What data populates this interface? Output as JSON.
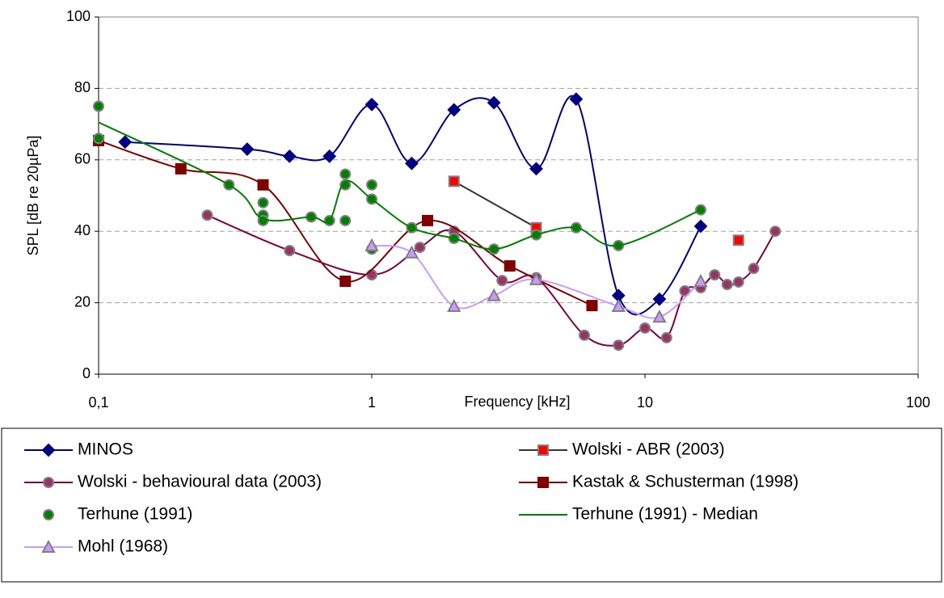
{
  "chart_data": {
    "type": "line",
    "xlabel": "Frequency [kHz]",
    "ylabel": "SPL [dB re 20µPa]",
    "xscale": "log",
    "xlim": [
      0.1,
      100
    ],
    "xticks": [
      {
        "value": 0.1,
        "label": "0,1"
      },
      1,
      10,
      100
    ],
    "ylim": [
      0,
      100
    ],
    "yticks": [
      0,
      20,
      40,
      60,
      80,
      100
    ],
    "grid": true,
    "legend": "bottom",
    "series": [
      {
        "name": "MINOS",
        "color": "#000080",
        "marker": "diamond",
        "marker_color": "#000080",
        "line": true,
        "smooth": true,
        "x": [
          0.125,
          0.35,
          0.5,
          0.7,
          1,
          1.4,
          2,
          2.8,
          4,
          5.6,
          8,
          11.3,
          16
        ],
        "values": [
          65,
          63,
          61,
          61,
          75.5,
          59,
          74,
          76,
          57.5,
          77,
          22,
          21,
          41.4
        ]
      },
      {
        "name": "Wolski - ABR (2003)",
        "color": "#333333",
        "marker": "square",
        "marker_color": "#ff0000",
        "line": true,
        "smooth": false,
        "x": [
          2,
          4,
          null,
          22
        ],
        "values": [
          54,
          41,
          null,
          37.5
        ]
      },
      {
        "name": "Wolski - behavioural data (2003)",
        "color": "#800040",
        "marker": "circle",
        "marker_color": "#993366",
        "line": true,
        "smooth": true,
        "x": [
          0.25,
          0.5,
          1,
          1.5,
          2,
          3,
          4,
          6,
          8,
          10,
          12,
          14,
          16,
          18,
          20,
          22,
          25,
          30
        ],
        "values": [
          44.5,
          34.6,
          27.8,
          35.5,
          40,
          26.2,
          27,
          10.9,
          8.1,
          12.9,
          10.2,
          23.3,
          24.2,
          27.8,
          25.1,
          25.8,
          29.6,
          40
        ]
      },
      {
        "name": "Kastak & Schusterman (1998)",
        "color": "#800000",
        "marker": "square",
        "marker_color": "#800000",
        "line": true,
        "smooth": true,
        "x": [
          0.1,
          0.2,
          0.4,
          0.8,
          1.6,
          3.2,
          6.4
        ],
        "values": [
          65.4,
          57.5,
          53,
          26,
          43,
          30.3,
          19.2
        ]
      },
      {
        "name": "Terhune (1991)",
        "color": "#008000",
        "marker": "circle",
        "marker_color": "#008000",
        "line": false,
        "smooth": false,
        "x": [
          0.1,
          0.1,
          0.3,
          0.4,
          0.4,
          0.4,
          0.6,
          0.7,
          0.8,
          0.8,
          0.8,
          1,
          1,
          1,
          1.4,
          2,
          2.8,
          4,
          5.6,
          8,
          16
        ],
        "values": [
          75,
          66,
          53,
          48,
          44.5,
          43,
          44,
          43,
          56,
          53,
          43,
          53,
          49,
          35,
          41,
          38,
          35,
          39,
          41,
          36,
          46
        ]
      },
      {
        "name": "Terhune (1991) - Median",
        "color": "#008000",
        "marker": "none",
        "marker_color": "#008000",
        "line": true,
        "smooth": true,
        "x": [
          0.1,
          0.3,
          0.4,
          0.6,
          0.7,
          0.8,
          1,
          1.4,
          2,
          2.8,
          4,
          5.6,
          8,
          16
        ],
        "values": [
          70.5,
          53,
          43.5,
          44,
          43,
          54,
          49,
          41,
          38,
          35,
          39,
          41,
          36,
          46
        ]
      },
      {
        "name": "Mohl (1968)",
        "color": "#cc99ff",
        "marker": "triangle",
        "marker_color": "#cc99ff",
        "line": true,
        "smooth": true,
        "x": [
          1,
          1.4,
          2,
          2.8,
          4,
          8,
          11.3,
          16
        ],
        "values": [
          36,
          34,
          19,
          22,
          26.5,
          19,
          16,
          26
        ]
      }
    ]
  }
}
